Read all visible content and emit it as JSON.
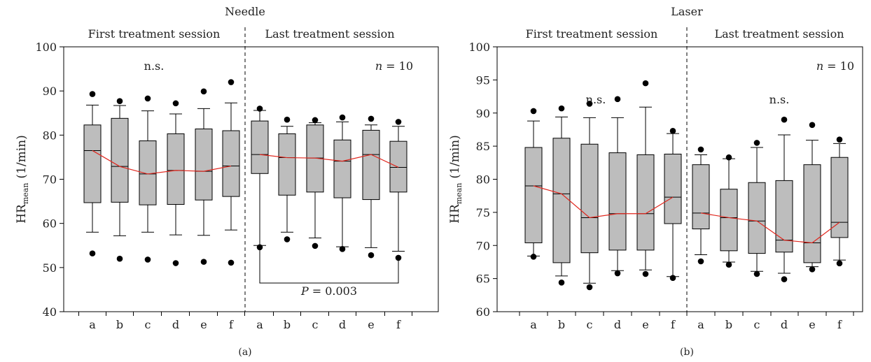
{
  "chart_data": [
    {
      "type": "box",
      "title": "Needle",
      "caption": "(a)",
      "ylabel_main": "HR",
      "ylabel_sub": "mean",
      "ylabel_unit": "(1/min)",
      "ylim": [
        40,
        100
      ],
      "yticks": [
        40,
        50,
        60,
        70,
        80,
        90,
        100
      ],
      "categories": [
        "a",
        "b",
        "c",
        "d",
        "e",
        "f"
      ],
      "groups": [
        {
          "name": "First treatment session",
          "annotation": "n.s.",
          "boxes": [
            {
              "cat": "a",
              "whisker_low": 58,
              "q1": 64.7,
              "median": 76.5,
              "q3": 82.3,
              "whisker_high": 86.8,
              "outliers": [
                53.2,
                89.3
              ]
            },
            {
              "cat": "b",
              "whisker_low": 57.2,
              "q1": 64.8,
              "median": 72.9,
              "q3": 83.8,
              "whisker_high": 86.7,
              "outliers": [
                52,
                87.7
              ]
            },
            {
              "cat": "c",
              "whisker_low": 58,
              "q1": 64.2,
              "median": 71.2,
              "q3": 78.7,
              "whisker_high": 85.5,
              "outliers": [
                51.8,
                88.3
              ]
            },
            {
              "cat": "d",
              "whisker_low": 57.4,
              "q1": 64.3,
              "median": 72.0,
              "q3": 80.3,
              "whisker_high": 84.8,
              "outliers": [
                51,
                87.2
              ]
            },
            {
              "cat": "e",
              "whisker_low": 57.3,
              "q1": 65.3,
              "median": 71.8,
              "q3": 81.4,
              "whisker_high": 86,
              "outliers": [
                51.3,
                89.9
              ]
            },
            {
              "cat": "f",
              "whisker_low": 58.5,
              "q1": 66.1,
              "median": 73.0,
              "q3": 81.0,
              "whisker_high": 87.3,
              "outliers": [
                51.1,
                92
              ]
            }
          ]
        },
        {
          "name": "Last treatment session",
          "annotation": "",
          "n_label_var": "n",
          "n_label_value": "= 10",
          "p_label_var": "P",
          "p_label_value": "= 0.003",
          "bracket_from": "a",
          "bracket_to": "f",
          "boxes": [
            {
              "cat": "a",
              "whisker_low": 55,
              "q1": 71.3,
              "median": 75.6,
              "q3": 83.2,
              "whisker_high": 85.6,
              "outliers": [
                54.6,
                86
              ]
            },
            {
              "cat": "b",
              "whisker_low": 58,
              "q1": 66.4,
              "median": 74.9,
              "q3": 80.3,
              "whisker_high": 82,
              "outliers": [
                56.4,
                83.5
              ]
            },
            {
              "cat": "c",
              "whisker_low": 56.7,
              "q1": 67.1,
              "median": 74.8,
              "q3": 82.3,
              "whisker_high": 82.8,
              "outliers": [
                54.9,
                83.4
              ]
            },
            {
              "cat": "d",
              "whisker_low": 54.7,
              "q1": 65.8,
              "median": 74.1,
              "q3": 78.9,
              "whisker_high": 83,
              "outliers": [
                54.2,
                84
              ]
            },
            {
              "cat": "e",
              "whisker_low": 54.5,
              "q1": 65.4,
              "median": 75.6,
              "q3": 81.1,
              "whisker_high": 82.3,
              "outliers": [
                52.8,
                83.7
              ]
            },
            {
              "cat": "f",
              "whisker_low": 53.7,
              "q1": 67.1,
              "median": 72.7,
              "q3": 78.6,
              "whisker_high": 82,
              "outliers": [
                52.2,
                83
              ]
            }
          ]
        }
      ],
      "trend_color": "#e0261d",
      "box_color": "#bdbdbd"
    },
    {
      "type": "box",
      "title": "Laser",
      "caption": "(b)",
      "ylabel_main": "HR",
      "ylabel_sub": "mean",
      "ylabel_unit": "(1/min)",
      "ylim": [
        60,
        100
      ],
      "yticks": [
        60,
        65,
        70,
        75,
        80,
        85,
        90,
        95,
        100
      ],
      "categories": [
        "a",
        "b",
        "c",
        "d",
        "e",
        "f"
      ],
      "groups": [
        {
          "name": "First treatment session",
          "annotation": "n.s.",
          "boxes": [
            {
              "cat": "a",
              "whisker_low": 68.4,
              "q1": 70.4,
              "median": 79.0,
              "q3": 84.8,
              "whisker_high": 88.8,
              "outliers": [
                68.3,
                90.3
              ]
            },
            {
              "cat": "b",
              "whisker_low": 65.4,
              "q1": 67.4,
              "median": 77.8,
              "q3": 86.2,
              "whisker_high": 89.4,
              "outliers": [
                64.4,
                90.7
              ]
            },
            {
              "cat": "c",
              "whisker_low": 64.3,
              "q1": 68.9,
              "median": 74.2,
              "q3": 85.3,
              "whisker_high": 89.3,
              "outliers": [
                63.7,
                91.4
              ]
            },
            {
              "cat": "d",
              "whisker_low": 66.2,
              "q1": 69.3,
              "median": 74.8,
              "q3": 84.0,
              "whisker_high": 89.3,
              "outliers": [
                65.8,
                92.1
              ]
            },
            {
              "cat": "e",
              "whisker_low": 66.3,
              "q1": 69.3,
              "median": 74.8,
              "q3": 83.7,
              "whisker_high": 90.9,
              "outliers": [
                65.7,
                94.5
              ]
            },
            {
              "cat": "f",
              "whisker_low": 65.3,
              "q1": 73.3,
              "median": 77.3,
              "q3": 83.8,
              "whisker_high": 86.9,
              "outliers": [
                65.1,
                87.3
              ]
            }
          ]
        },
        {
          "name": "Last treatment session",
          "annotation": "n.s.",
          "n_label_var": "n",
          "n_label_value": "= 10",
          "boxes": [
            {
              "cat": "a",
              "whisker_low": 68.6,
              "q1": 72.5,
              "median": 74.9,
              "q3": 82.2,
              "whisker_high": 83.7,
              "outliers": [
                67.6,
                84.5
              ]
            },
            {
              "cat": "b",
              "whisker_low": 67.5,
              "q1": 69.2,
              "median": 74.2,
              "q3": 78.5,
              "whisker_high": 83.1,
              "outliers": [
                67.1,
                83.3
              ]
            },
            {
              "cat": "c",
              "whisker_low": 66.1,
              "q1": 68.8,
              "median": 73.7,
              "q3": 79.5,
              "whisker_high": 84.8,
              "outliers": [
                65.7,
                85.5
              ]
            },
            {
              "cat": "d",
              "whisker_low": 65.8,
              "q1": 69.0,
              "median": 70.8,
              "q3": 79.8,
              "whisker_high": 86.7,
              "outliers": [
                64.9,
                89
              ]
            },
            {
              "cat": "e",
              "whisker_low": 66.8,
              "q1": 67.4,
              "median": 70.4,
              "q3": 82.2,
              "whisker_high": 85.9,
              "outliers": [
                66.4,
                88.2
              ]
            },
            {
              "cat": "f",
              "whisker_low": 67.8,
              "q1": 71.2,
              "median": 73.5,
              "q3": 83.3,
              "whisker_high": 85.4,
              "outliers": [
                67.3,
                86
              ]
            }
          ]
        }
      ],
      "trend_color": "#e0261d",
      "box_color": "#bdbdbd"
    }
  ]
}
